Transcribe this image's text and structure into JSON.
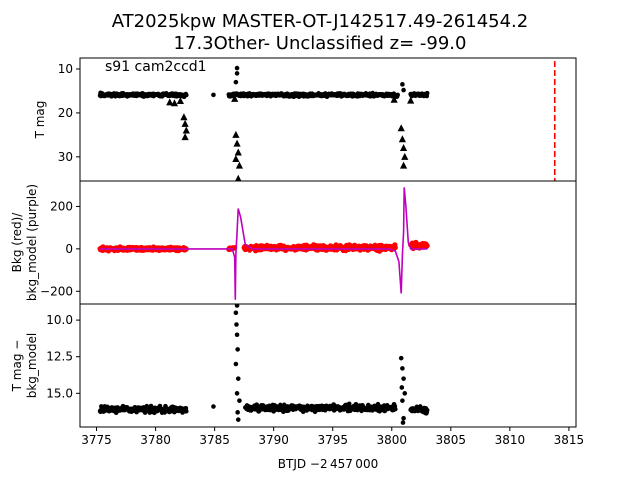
{
  "title_line1": "AT2025kpw  MASTER-OT-J142517.49-261454.2",
  "title_line2": "17.3Other- Unclassified z= -99.0",
  "panel_note": "s91 cam2ccd1",
  "xlabel": "BTJD −2 457 000",
  "colors": {
    "points": "#000000",
    "bkg": "#ff0000",
    "bkg_model": "#bf00bf",
    "marker_line": "#ff0000"
  },
  "chart_data": [
    {
      "type": "scatter",
      "ylabel": "T mag",
      "y_inverted": true,
      "xlim": [
        3773.6,
        3815.6
      ],
      "ylim": [
        35.5,
        7.5
      ],
      "yticks": [
        10,
        20,
        30
      ],
      "xticks": [],
      "vertical_line_x": 3813.8,
      "series": [
        {
          "marker": "circle",
          "segments": [
            {
              "x": [
                3775.3,
                3782.6
              ],
              "y": 15.9,
              "jitter": 0.5
            },
            {
              "x": [
                3786.2,
                3800.5
              ],
              "y": 15.9,
              "jitter": 0.5
            },
            {
              "x": [
                3801.6,
                3803.0
              ],
              "y": 15.9,
              "jitter": 0.5
            }
          ],
          "points": [
            {
              "x": 3784.9,
              "y": 15.9
            },
            {
              "x": 3786.9,
              "y": 9.8
            },
            {
              "x": 3786.9,
              "y": 11.0
            },
            {
              "x": 3786.8,
              "y": 13.0
            },
            {
              "x": 3800.9,
              "y": 13.5
            },
            {
              "x": 3801.0,
              "y": 14.8
            }
          ]
        },
        {
          "marker": "triangle",
          "points": [
            {
              "x": 3781.2,
              "y": 17.6
            },
            {
              "x": 3781.6,
              "y": 17.8
            },
            {
              "x": 3782.1,
              "y": 17.3
            },
            {
              "x": 3782.4,
              "y": 21.0
            },
            {
              "x": 3782.5,
              "y": 22.5
            },
            {
              "x": 3782.6,
              "y": 24.0
            },
            {
              "x": 3782.5,
              "y": 25.5
            },
            {
              "x": 3786.7,
              "y": 16.8
            },
            {
              "x": 3786.8,
              "y": 25.0
            },
            {
              "x": 3786.9,
              "y": 27.0
            },
            {
              "x": 3787.0,
              "y": 29.0
            },
            {
              "x": 3786.8,
              "y": 30.5
            },
            {
              "x": 3787.1,
              "y": 32.0
            },
            {
              "x": 3787.0,
              "y": 35.0
            },
            {
              "x": 3800.2,
              "y": 17.0
            },
            {
              "x": 3800.8,
              "y": 23.5
            },
            {
              "x": 3800.9,
              "y": 26.0
            },
            {
              "x": 3801.0,
              "y": 28.0
            },
            {
              "x": 3801.1,
              "y": 30.0
            },
            {
              "x": 3801.0,
              "y": 32.0
            },
            {
              "x": 3801.6,
              "y": 17.2
            }
          ]
        }
      ]
    },
    {
      "type": "line",
      "ylabel": "Bkg (red)/\nbkg_model (purple)",
      "xlim": [
        3773.6,
        3815.6
      ],
      "ylim": [
        -260,
        320
      ],
      "yticks": [
        -200,
        0,
        200
      ],
      "xticks": [],
      "series": [
        {
          "name": "bkg",
          "style": "points",
          "segments": [
            {
              "x": [
                3775.3,
                3782.6
              ],
              "y": 0,
              "jitter": 12
            },
            {
              "x": [
                3786.2,
                3786.7
              ],
              "y": 0,
              "jitter": 10
            },
            {
              "x": [
                3787.5,
                3800.3
              ],
              "y": 5,
              "jitter": 18
            },
            {
              "x": [
                3801.6,
                3803.0
              ],
              "y": 15,
              "jitter": 20
            }
          ]
        },
        {
          "name": "bkg_model",
          "style": "line",
          "x": [
            3775.3,
            3784.8,
            3786.5,
            3786.7,
            3786.75,
            3786.8,
            3786.9,
            3787.0,
            3787.2,
            3787.6,
            3788.2,
            3799.8,
            3800.3,
            3800.6,
            3800.8,
            3800.9,
            3801.0,
            3801.05,
            3801.2,
            3801.4,
            3801.6,
            3803.0
          ],
          "y": [
            0,
            0,
            0,
            -40,
            -240,
            -20,
            80,
            190,
            150,
            20,
            0,
            0,
            -10,
            -60,
            -210,
            -30,
            80,
            290,
            200,
            30,
            0,
            0
          ]
        }
      ]
    },
    {
      "type": "scatter",
      "ylabel": "T mag −\nbkg_model",
      "y_inverted": true,
      "xlim": [
        3773.6,
        3815.6
      ],
      "ylim": [
        17.3,
        8.9
      ],
      "yticks": [
        10.0,
        12.5,
        15.0
      ],
      "xticks": [
        3775,
        3780,
        3785,
        3790,
        3795,
        3800,
        3805,
        3810,
        3815
      ],
      "series": [
        {
          "marker": "circle",
          "segments": [
            {
              "x": [
                3775.3,
                3782.6
              ],
              "y": 16.1,
              "jitter": 0.3
            },
            {
              "x": [
                3787.6,
                3800.3
              ],
              "y": 16.0,
              "jitter": 0.3
            },
            {
              "x": [
                3801.6,
                3803.0
              ],
              "y": 16.1,
              "jitter": 0.3
            }
          ],
          "points": [
            {
              "x": 3784.9,
              "y": 15.9
            },
            {
              "x": 3786.9,
              "y": 9.0
            },
            {
              "x": 3786.8,
              "y": 9.5
            },
            {
              "x": 3786.85,
              "y": 10.3
            },
            {
              "x": 3786.9,
              "y": 11.0
            },
            {
              "x": 3786.95,
              "y": 12.0
            },
            {
              "x": 3786.8,
              "y": 13.0
            },
            {
              "x": 3787.0,
              "y": 14.0
            },
            {
              "x": 3786.9,
              "y": 15.0
            },
            {
              "x": 3787.1,
              "y": 15.5
            },
            {
              "x": 3786.95,
              "y": 16.3
            },
            {
              "x": 3787.0,
              "y": 16.8
            },
            {
              "x": 3800.8,
              "y": 12.6
            },
            {
              "x": 3800.9,
              "y": 13.3
            },
            {
              "x": 3801.0,
              "y": 14.0
            },
            {
              "x": 3800.85,
              "y": 14.6
            },
            {
              "x": 3801.1,
              "y": 15.0
            },
            {
              "x": 3800.9,
              "y": 15.5
            },
            {
              "x": 3801.0,
              "y": 16.7
            },
            {
              "x": 3800.95,
              "y": 17.0
            }
          ]
        }
      ]
    }
  ]
}
